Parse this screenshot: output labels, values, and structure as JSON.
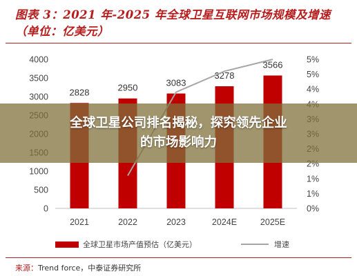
{
  "header": {
    "title": "图表 3：2021 年-2025 年全球卫星互联网市场规模及增速（单位：亿美元）"
  },
  "chart_data": {
    "type": "bar",
    "categories": [
      "2021",
      "2022",
      "2023",
      "2024E",
      "2025E"
    ],
    "series": [
      {
        "name": "全球卫星市场产值预估（亿美元）",
        "type": "bar",
        "axis": "left",
        "color": "#c00000",
        "values": [
          2828,
          2950,
          3083,
          3278,
          3566
        ]
      },
      {
        "name": "增速",
        "type": "line",
        "axis": "right",
        "color": "#a6a6a6",
        "values": [
          null,
          1.1,
          3.9,
          4.6,
          5.0
        ]
      }
    ],
    "ylim": [
      0,
      4000
    ],
    "y_ticks": [
      "0",
      "500",
      "1000",
      "1500",
      "2000",
      "2500",
      "3000",
      "3500",
      "4000"
    ],
    "y2lim": [
      0,
      5
    ],
    "y2_ticks": [
      "0%",
      "1%",
      "1%",
      "2%",
      "2%",
      "3%",
      "3%",
      "4%",
      "4%",
      "5%",
      "5%"
    ],
    "grid": false,
    "legend_position": "bottom"
  },
  "legend": {
    "bar_label": "全球卫星市场产值预估（亿美元）",
    "line_label": "增速"
  },
  "source": {
    "label": "来源：",
    "text": "Trend force，中泰证券研究所"
  },
  "banner": {
    "line1": "全球卫星公司排名揭秘，探究领先企业",
    "line2": "的市场影响力"
  }
}
